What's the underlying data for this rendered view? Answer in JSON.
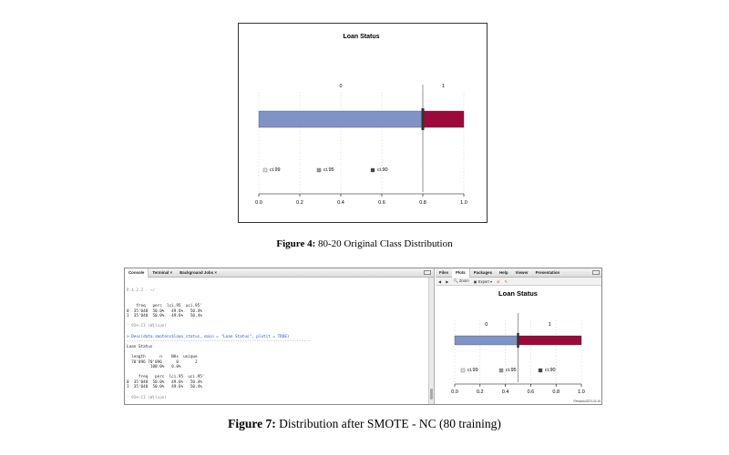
{
  "figure4": {
    "caption_label": "Figure 4:",
    "caption_text": " 80-20 Original Class Distribution"
  },
  "figure7": {
    "caption_label": "Figure 7:",
    "caption_text": " Distribution after SMOTE - NC (80 training)",
    "console_tabs": [
      "Console",
      "Terminal ×",
      "Background Jobs ×"
    ],
    "console_path": "R 4.2.2 · ~/",
    "console_lines": [
      {
        "text": "    freq   perc  lci.95  uci.95'",
        "cls": ""
      },
      {
        "text": "0  35'048  50.0%   49.6%   50.4%",
        "cls": ""
      },
      {
        "text": "1  35'048  50.0%   49.6%   50.4%",
        "cls": ""
      },
      {
        "text": "",
        "cls": ""
      },
      {
        "text": "' 95%-CI (Wilson)",
        "cls": "dim"
      },
      {
        "text": "",
        "cls": ""
      },
      {
        "text": "> Desc(data.smotenc$loan_status, main = \"Loan Status\", plotit = TRUE)",
        "cls": "cmd"
      },
      {
        "text": "------------------------------------------------------------------------------",
        "cls": "dash"
      },
      {
        "text": "Loan Status",
        "cls": ""
      },
      {
        "text": "",
        "cls": ""
      },
      {
        "text": "  length      n    NAs  unique",
        "cls": ""
      },
      {
        "text": "  70'096 70'096      0       2",
        "cls": ""
      },
      {
        "text": "          100.0%   0.0%",
        "cls": ""
      },
      {
        "text": "",
        "cls": ""
      },
      {
        "text": "     freq   perc  lci.95  uci.95'",
        "cls": ""
      },
      {
        "text": "0  35'048  50.0%   49.6%   50.4%",
        "cls": ""
      },
      {
        "text": "1  35'048  50.0%   49.6%   50.4%",
        "cls": ""
      },
      {
        "text": "",
        "cls": ""
      },
      {
        "text": "' 95%-CI (Wilson)",
        "cls": "dim"
      },
      {
        "text": "",
        "cls": ""
      },
      {
        "text": ">",
        "cls": "cmd"
      }
    ],
    "files_tabs": [
      "Files",
      "Plots",
      "Packages",
      "Help",
      "Viewer",
      "Presentation"
    ],
    "plot_toolbar": [
      "Zoom",
      "Export ▾"
    ],
    "stamp": "Revisado2023-03-26"
  },
  "chart_data": [
    {
      "type": "bar",
      "title": "Loan Status",
      "categories": [
        "0",
        "1"
      ],
      "values": [
        0.8,
        0.2
      ],
      "xlim": [
        0.0,
        1.0
      ],
      "xticks": [
        "0.0",
        "0.2",
        "0.4",
        "0.6",
        "0.8",
        "1.0"
      ],
      "legend": [
        "ci.99",
        "ci.95",
        "ci.90"
      ],
      "colors": {
        "0": "#8093c6",
        "1": "#9c0a3c"
      },
      "grid": true
    },
    {
      "type": "bar",
      "title": "Loan Status",
      "categories": [
        "0",
        "1"
      ],
      "values": [
        0.5,
        0.5
      ],
      "xlim": [
        0.0,
        1.0
      ],
      "xticks": [
        "0.0",
        "0.2",
        "0.4",
        "0.6",
        "0.8",
        "1.0"
      ],
      "legend": [
        "ci.99",
        "ci.95",
        "ci.90"
      ],
      "colors": {
        "0": "#8093c6",
        "1": "#9c0a3c"
      },
      "grid": true
    }
  ]
}
